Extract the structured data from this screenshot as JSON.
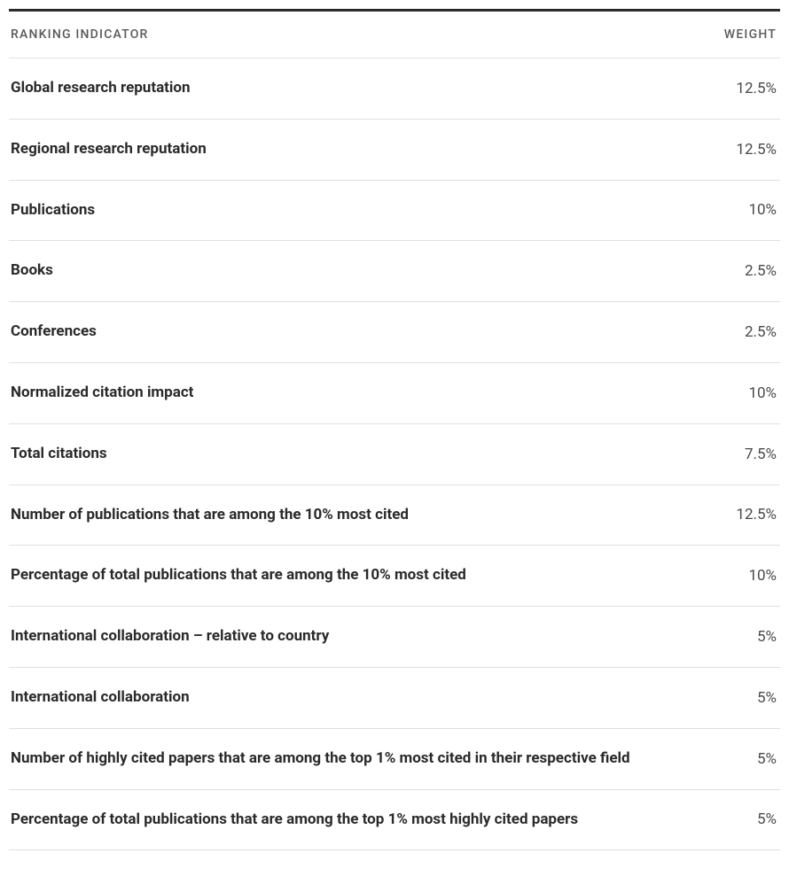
{
  "table": {
    "header": {
      "indicator": "RANKING INDICATOR",
      "weight": "WEIGHT"
    },
    "rows": [
      {
        "indicator": "Global research reputation",
        "weight": "12.5%"
      },
      {
        "indicator": "Regional research reputation",
        "weight": "12.5%"
      },
      {
        "indicator": "Publications",
        "weight": "10%"
      },
      {
        "indicator": "Books",
        "weight": "2.5%"
      },
      {
        "indicator": "Conferences",
        "weight": "2.5%"
      },
      {
        "indicator": "Normalized citation impact",
        "weight": "10%"
      },
      {
        "indicator": "Total citations",
        "weight": "7.5%"
      },
      {
        "indicator": "Number of publications that are among the 10% most cited",
        "weight": "12.5%"
      },
      {
        "indicator": "Percentage of total publications that are among the 10% most cited",
        "weight": "10%"
      },
      {
        "indicator": "International collaboration – relative to country",
        "weight": "5%"
      },
      {
        "indicator": "International collaboration",
        "weight": "5%"
      },
      {
        "indicator": "Number of highly cited papers that are among the top 1% most cited in their respective field",
        "weight": "5%"
      },
      {
        "indicator": "Percentage of total publications that are among the top 1% most highly cited papers",
        "weight": "5%"
      }
    ],
    "styling": {
      "border_top_color": "#2a2a2a",
      "border_top_width": 3,
      "row_border_color": "#e0e0e0",
      "header_text_color": "#5a5a5a",
      "header_font_size": 14,
      "header_letter_spacing": 1.2,
      "indicator_font_size": 17,
      "indicator_font_weight": 700,
      "indicator_color": "#2a2a2a",
      "weight_font_size": 17,
      "weight_font_weight": 400,
      "weight_color": "#4a4a4a",
      "background_color": "#ffffff"
    }
  }
}
